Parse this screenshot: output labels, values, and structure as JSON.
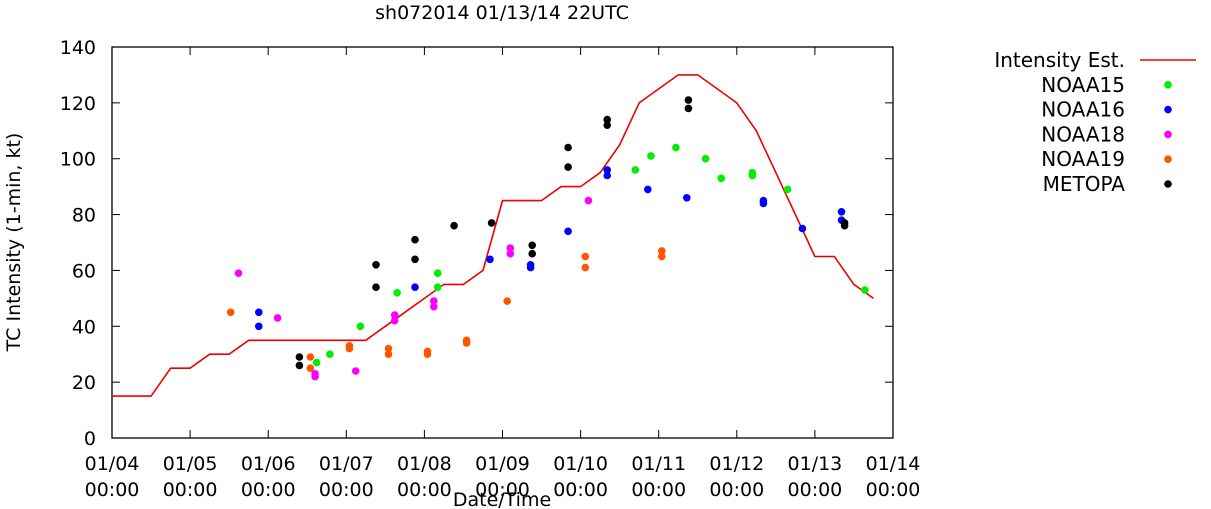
{
  "chart_data": {
    "type": "scatter",
    "title": "sh072014 01/13/14 22UTC",
    "xlabel": "Date/Time",
    "ylabel": "TC Intensity (1-min, kt)",
    "ylim": [
      0,
      140
    ],
    "yticks": [
      0,
      20,
      40,
      60,
      80,
      100,
      120,
      140
    ],
    "xlim_days": [
      0,
      10
    ],
    "xticks": [
      {
        "day": 0,
        "date": "01/04",
        "time": "00:00"
      },
      {
        "day": 1,
        "date": "01/05",
        "time": "00:00"
      },
      {
        "day": 2,
        "date": "01/06",
        "time": "00:00"
      },
      {
        "day": 3,
        "date": "01/07",
        "time": "00:00"
      },
      {
        "day": 4,
        "date": "01/08",
        "time": "00:00"
      },
      {
        "day": 5,
        "date": "01/09",
        "time": "00:00"
      },
      {
        "day": 6,
        "date": "01/10",
        "time": "00:00"
      },
      {
        "day": 7,
        "date": "01/11",
        "time": "00:00"
      },
      {
        "day": 8,
        "date": "01/12",
        "time": "00:00"
      },
      {
        "day": 9,
        "date": "01/13",
        "time": "00:00"
      },
      {
        "day": 10,
        "date": "01/14",
        "time": "00:00"
      }
    ],
    "x_units": "days since 01/04 00:00",
    "grid": false,
    "legend_position": "outside-right-top",
    "series": [
      {
        "name": "Intensity Est.",
        "kind": "line",
        "color": "#ee0000",
        "points": [
          [
            0,
            15
          ],
          [
            0.5,
            15
          ],
          [
            0.75,
            25
          ],
          [
            1,
            25
          ],
          [
            1.25,
            30
          ],
          [
            1.5,
            30
          ],
          [
            1.75,
            35
          ],
          [
            2,
            35
          ],
          [
            2.25,
            35
          ],
          [
            2.5,
            35
          ],
          [
            2.75,
            35
          ],
          [
            3,
            35
          ],
          [
            3.25,
            35
          ],
          [
            3.5,
            40
          ],
          [
            3.75,
            45
          ],
          [
            4,
            50
          ],
          [
            4.25,
            55
          ],
          [
            4.5,
            55
          ],
          [
            4.75,
            60
          ],
          [
            5,
            85
          ],
          [
            5.25,
            85
          ],
          [
            5.5,
            85
          ],
          [
            5.75,
            90
          ],
          [
            6,
            90
          ],
          [
            6.25,
            95
          ],
          [
            6.5,
            105
          ],
          [
            6.75,
            120
          ],
          [
            7,
            125
          ],
          [
            7.25,
            130
          ],
          [
            7.5,
            130
          ],
          [
            7.75,
            125
          ],
          [
            8,
            120
          ],
          [
            8.25,
            110
          ],
          [
            8.5,
            95
          ],
          [
            8.75,
            80
          ],
          [
            9,
            65
          ],
          [
            9.25,
            65
          ],
          [
            9.5,
            55
          ],
          [
            9.75,
            50
          ]
        ]
      },
      {
        "name": "NOAA15",
        "kind": "points",
        "color": "#00ee00",
        "points": [
          [
            2.62,
            27
          ],
          [
            2.79,
            30
          ],
          [
            3.18,
            40
          ],
          [
            3.65,
            52
          ],
          [
            4.17,
            54
          ],
          [
            4.17,
            59
          ],
          [
            6.7,
            96
          ],
          [
            6.9,
            101
          ],
          [
            7.22,
            104
          ],
          [
            7.6,
            100
          ],
          [
            7.8,
            93
          ],
          [
            8.2,
            94
          ],
          [
            8.2,
            95
          ],
          [
            8.65,
            89
          ],
          [
            9.64,
            53
          ]
        ]
      },
      {
        "name": "NOAA16",
        "kind": "points",
        "color": "#0000ff",
        "points": [
          [
            1.88,
            40
          ],
          [
            1.88,
            45
          ],
          [
            3.88,
            54
          ],
          [
            4.84,
            64
          ],
          [
            5.36,
            61
          ],
          [
            5.36,
            62
          ],
          [
            5.84,
            74
          ],
          [
            6.34,
            94
          ],
          [
            6.34,
            96
          ],
          [
            6.86,
            89
          ],
          [
            7.36,
            86
          ],
          [
            8.34,
            84
          ],
          [
            8.34,
            85
          ],
          [
            8.84,
            75
          ],
          [
            9.34,
            78
          ],
          [
            9.34,
            81
          ]
        ]
      },
      {
        "name": "NOAA18",
        "kind": "points",
        "color": "#ff00ff",
        "points": [
          [
            1.62,
            59
          ],
          [
            2.12,
            43
          ],
          [
            2.6,
            22
          ],
          [
            2.6,
            23
          ],
          [
            3.12,
            24
          ],
          [
            3.62,
            42
          ],
          [
            3.62,
            44
          ],
          [
            4.12,
            47
          ],
          [
            4.12,
            49
          ],
          [
            5.1,
            66
          ],
          [
            5.1,
            68
          ],
          [
            6.1,
            85
          ]
        ]
      },
      {
        "name": "NOAA19",
        "kind": "points",
        "color": "#ff5500",
        "points": [
          [
            1.52,
            45
          ],
          [
            2.54,
            25
          ],
          [
            2.54,
            29
          ],
          [
            3.04,
            32
          ],
          [
            3.04,
            33
          ],
          [
            3.54,
            30
          ],
          [
            3.54,
            32
          ],
          [
            4.04,
            30
          ],
          [
            4.04,
            31
          ],
          [
            4.54,
            34
          ],
          [
            4.54,
            35
          ],
          [
            5.06,
            49
          ],
          [
            6.06,
            61
          ],
          [
            6.06,
            65
          ],
          [
            7.04,
            65
          ],
          [
            7.04,
            67
          ]
        ]
      },
      {
        "name": "METOPA",
        "kind": "points",
        "color": "#000000",
        "points": [
          [
            2.4,
            26
          ],
          [
            2.4,
            29
          ],
          [
            3.38,
            54
          ],
          [
            3.38,
            62
          ],
          [
            3.88,
            64
          ],
          [
            3.88,
            71
          ],
          [
            4.38,
            76
          ],
          [
            4.86,
            77
          ],
          [
            5.38,
            66
          ],
          [
            5.38,
            69
          ],
          [
            5.84,
            97
          ],
          [
            5.84,
            104
          ],
          [
            6.34,
            112
          ],
          [
            6.34,
            114
          ],
          [
            7.38,
            118
          ],
          [
            7.38,
            121
          ],
          [
            9.38,
            76
          ],
          [
            9.38,
            77
          ]
        ]
      }
    ]
  }
}
